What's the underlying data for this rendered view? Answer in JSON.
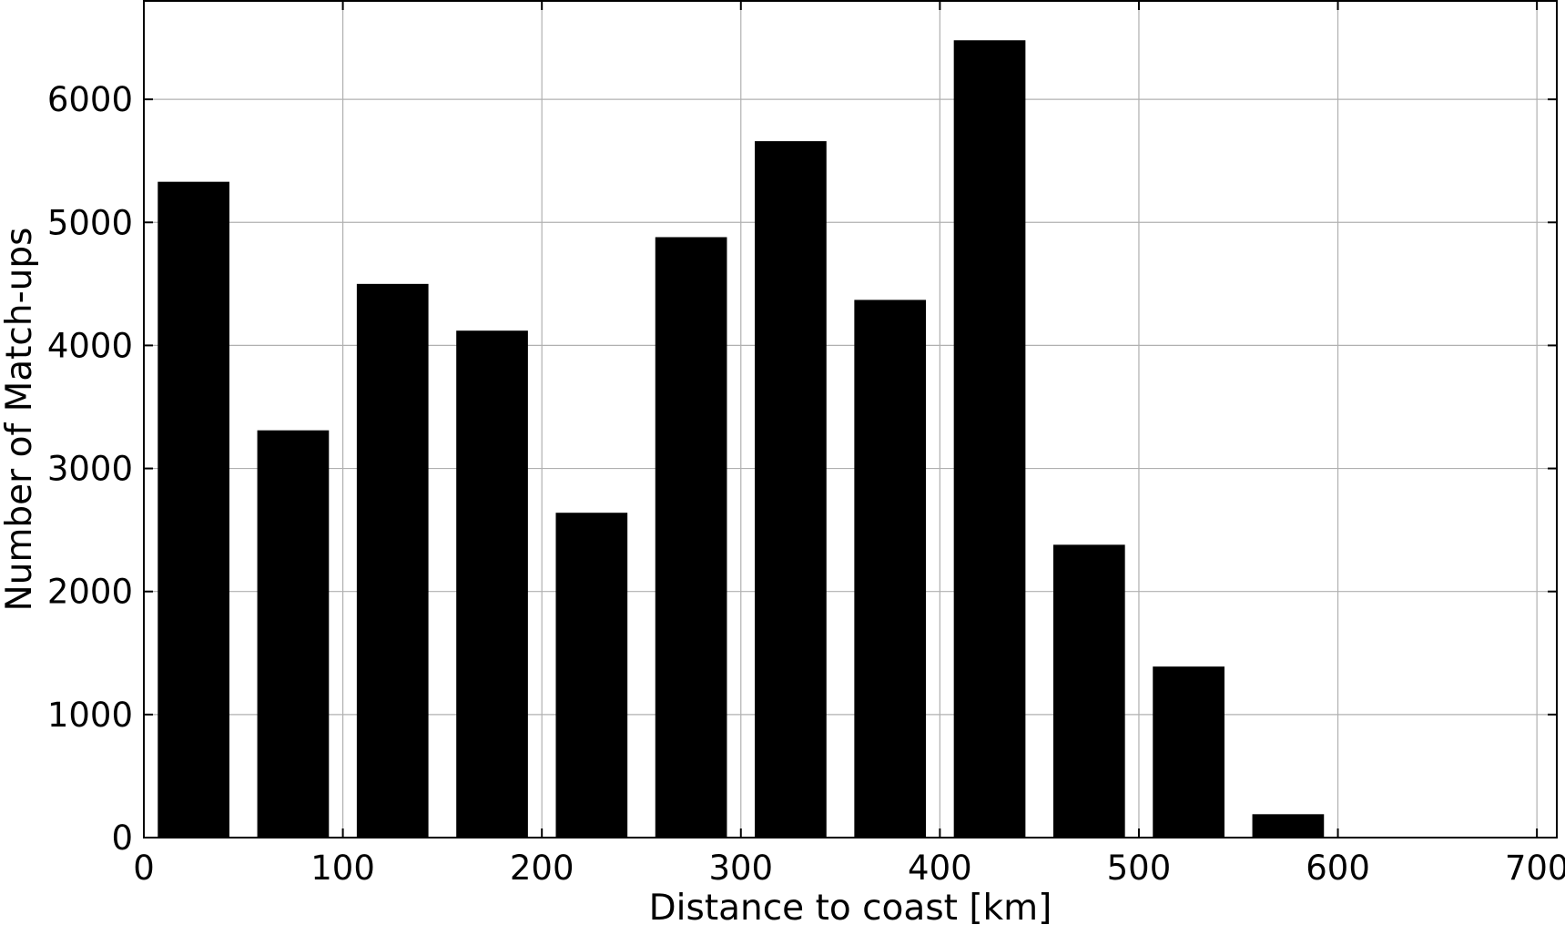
{
  "chart_data": {
    "type": "bar",
    "title": "",
    "xlabel": "Distance to coast [km]",
    "ylabel": "Number of Match-ups",
    "xlim": [
      0,
      710
    ],
    "ylim": [
      0,
      6800
    ],
    "bin_width": 50,
    "bar_width": 36,
    "x": [
      25,
      75,
      125,
      175,
      225,
      275,
      325,
      375,
      425,
      475,
      525,
      575
    ],
    "values": [
      5330,
      3310,
      4500,
      4120,
      2640,
      4880,
      5660,
      4370,
      6480,
      2380,
      1390,
      190
    ],
    "x_ticks": [
      0,
      100,
      200,
      300,
      400,
      500,
      600,
      700
    ],
    "y_ticks": [
      0,
      1000,
      2000,
      3000,
      4000,
      5000,
      6000
    ],
    "x_tick_labels": [
      "0",
      "100",
      "200",
      "300",
      "400",
      "500",
      "600",
      "700"
    ],
    "y_tick_labels": [
      "0",
      "1000",
      "2000",
      "3000",
      "4000",
      "5000",
      "6000"
    ],
    "grid": true,
    "legend": "none",
    "bar_color": "#000000",
    "grid_color": "#b0b0b0"
  }
}
